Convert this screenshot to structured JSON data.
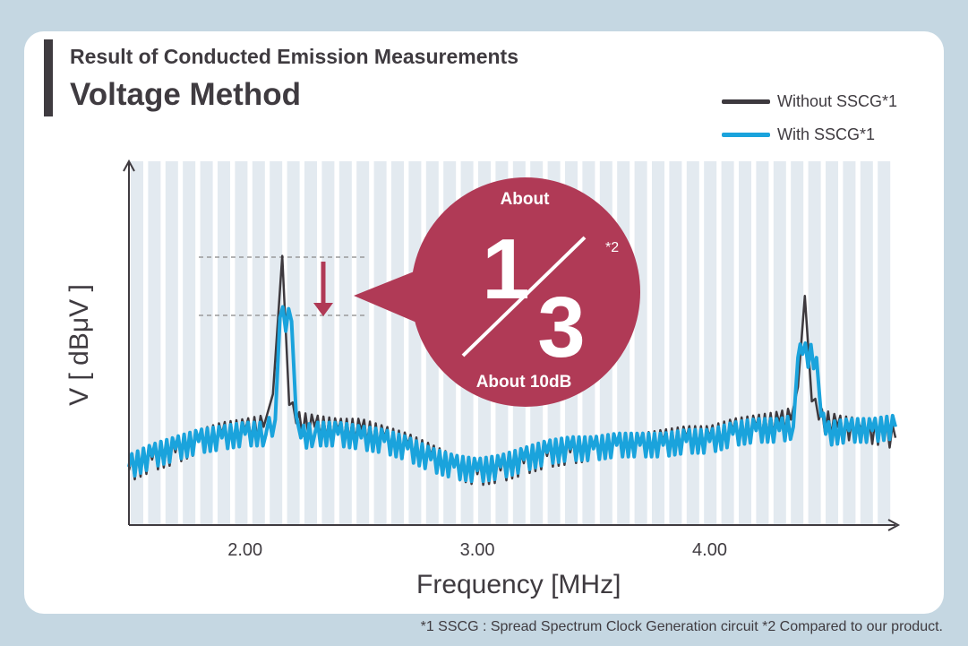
{
  "header": {
    "subtitle": "Result of Conducted Emission Measurements",
    "title": "Voltage Method"
  },
  "footnote": "*1 SSCG : Spread Spectrum Clock Generation circuit  *2 Compared to our product.",
  "annotation": {
    "top": "About",
    "numerator": "1",
    "denominator": "3",
    "mark": "*2",
    "bottom": "About 10dB"
  },
  "colors": {
    "without": "#3d393e",
    "with": "#1aa3dc",
    "callout": "#b03a56",
    "band": "#e3eaf0"
  },
  "chart_data": {
    "type": "line",
    "xlabel": "Frequency [MHz]",
    "ylabel": "V [ dBμV ]",
    "xlim": [
      1.5,
      4.8
    ],
    "ylim": [
      0,
      10
    ],
    "xticks": [
      "2.00",
      "3.00",
      "4.00"
    ],
    "xtick_values": [
      2.0,
      3.0,
      4.0
    ],
    "grid": "vertical bands",
    "legend_position": "top-right",
    "series": [
      {
        "name": "Without SSCG*1",
        "points": [
          [
            1.5,
            1.5
          ],
          [
            1.6,
            1.8
          ],
          [
            1.7,
            2.0
          ],
          [
            1.8,
            2.3
          ],
          [
            1.9,
            2.5
          ],
          [
            2.0,
            2.6
          ],
          [
            2.08,
            2.7
          ],
          [
            2.12,
            3.6
          ],
          [
            2.16,
            7.4
          ],
          [
            2.19,
            3.3
          ],
          [
            2.22,
            2.8
          ],
          [
            2.3,
            2.7
          ],
          [
            2.4,
            2.6
          ],
          [
            2.5,
            2.6
          ],
          [
            2.6,
            2.4
          ],
          [
            2.7,
            2.2
          ],
          [
            2.8,
            1.9
          ],
          [
            2.9,
            1.6
          ],
          [
            3.0,
            1.4
          ],
          [
            3.1,
            1.5
          ],
          [
            3.2,
            1.7
          ],
          [
            3.3,
            1.9
          ],
          [
            3.4,
            2.0
          ],
          [
            3.5,
            2.1
          ],
          [
            3.6,
            2.2
          ],
          [
            3.7,
            2.2
          ],
          [
            3.8,
            2.3
          ],
          [
            3.9,
            2.4
          ],
          [
            4.0,
            2.4
          ],
          [
            4.1,
            2.6
          ],
          [
            4.2,
            2.7
          ],
          [
            4.3,
            2.8
          ],
          [
            4.35,
            2.9
          ],
          [
            4.38,
            3.8
          ],
          [
            4.41,
            6.3
          ],
          [
            4.44,
            3.4
          ],
          [
            4.47,
            2.9
          ],
          [
            4.55,
            2.7
          ],
          [
            4.65,
            2.6
          ],
          [
            4.75,
            2.5
          ],
          [
            4.8,
            2.4
          ]
        ]
      },
      {
        "name": "With SSCG*1",
        "points": [
          [
            1.5,
            1.6
          ],
          [
            1.6,
            1.9
          ],
          [
            1.7,
            2.1
          ],
          [
            1.8,
            2.3
          ],
          [
            1.9,
            2.4
          ],
          [
            2.0,
            2.5
          ],
          [
            2.09,
            2.5
          ],
          [
            2.13,
            2.9
          ],
          [
            2.15,
            5.7
          ],
          [
            2.2,
            5.6
          ],
          [
            2.22,
            3.0
          ],
          [
            2.24,
            2.4
          ],
          [
            2.3,
            2.5
          ],
          [
            2.4,
            2.5
          ],
          [
            2.5,
            2.4
          ],
          [
            2.6,
            2.3
          ],
          [
            2.7,
            2.1
          ],
          [
            2.8,
            1.8
          ],
          [
            2.9,
            1.6
          ],
          [
            3.0,
            1.5
          ],
          [
            3.1,
            1.6
          ],
          [
            3.2,
            1.8
          ],
          [
            3.3,
            2.0
          ],
          [
            3.4,
            2.1
          ],
          [
            3.5,
            2.1
          ],
          [
            3.6,
            2.2
          ],
          [
            3.7,
            2.2
          ],
          [
            3.8,
            2.2
          ],
          [
            3.9,
            2.3
          ],
          [
            4.0,
            2.3
          ],
          [
            4.1,
            2.5
          ],
          [
            4.2,
            2.6
          ],
          [
            4.3,
            2.6
          ],
          [
            4.36,
            2.7
          ],
          [
            4.38,
            4.6
          ],
          [
            4.4,
            4.7
          ],
          [
            4.46,
            4.6
          ],
          [
            4.48,
            3.0
          ],
          [
            4.5,
            2.5
          ],
          [
            4.6,
            2.6
          ],
          [
            4.7,
            2.6
          ],
          [
            4.8,
            2.7
          ]
        ]
      }
    ]
  }
}
